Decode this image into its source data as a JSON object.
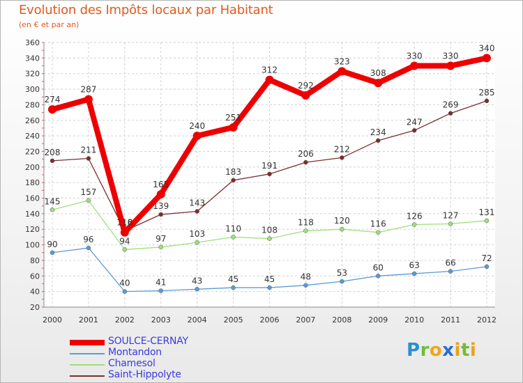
{
  "header": {
    "title": "Evolution des Impôts locaux par Habitant",
    "subtitle": "(en € et par an)"
  },
  "logo": {
    "text": "Proxiti"
  },
  "chart_data": {
    "type": "line",
    "title": "Evolution des Impôts locaux par Habitant",
    "subtitle": "(en € et par an)",
    "xlabel": "",
    "ylabel": "",
    "ylim": [
      20,
      360
    ],
    "yticks": [
      20,
      40,
      60,
      80,
      100,
      120,
      140,
      160,
      180,
      200,
      220,
      240,
      260,
      280,
      300,
      320,
      340,
      360
    ],
    "grid": true,
    "legend_position": "bottom-left",
    "categories": [
      "2000",
      "2001",
      "2002",
      "2003",
      "2004",
      "2005",
      "2006",
      "2007",
      "2008",
      "2009",
      "2010",
      "2011",
      "2012"
    ],
    "series": [
      {
        "name": "SOULCE-CERNAY",
        "color": "#ee0000",
        "values": [
          274,
          287,
          116,
          165,
          240,
          251,
          312,
          292,
          323,
          308,
          330,
          330,
          340
        ]
      },
      {
        "name": "Montandon",
        "color": "#5b9bd5",
        "values": [
          90,
          96,
          40,
          41,
          43,
          45,
          45,
          48,
          53,
          60,
          63,
          66,
          72
        ]
      },
      {
        "name": "Chamesol",
        "color": "#9ee07a",
        "values": [
          145,
          157,
          94,
          97,
          103,
          110,
          108,
          118,
          120,
          116,
          126,
          127,
          131
        ]
      },
      {
        "name": "Saint-Hippolyte",
        "color": "#7a2e2e",
        "values": [
          208,
          211,
          118,
          139,
          143,
          183,
          191,
          206,
          212,
          234,
          247,
          269,
          285
        ]
      }
    ]
  }
}
